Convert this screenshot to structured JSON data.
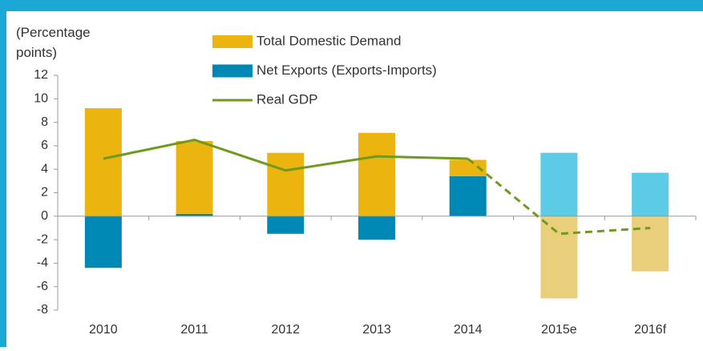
{
  "chart_data": {
    "type": "bar_line",
    "y_label": "(Percentage points)",
    "categories": [
      "2010",
      "2011",
      "2012",
      "2013",
      "2014",
      "2015e",
      "2016f"
    ],
    "series": [
      {
        "name": "Net Exports (Exports-Imports)",
        "type": "bar",
        "color": "#0088b4",
        "colors": [
          "#0088b4",
          "#0088b4",
          "#0088b4",
          "#0088b4",
          "#0088b4",
          "#5bcbe6",
          "#5bcbe6"
        ],
        "values": [
          -4.4,
          0.2,
          -1.5,
          -2.0,
          3.4,
          5.4,
          3.7
        ]
      },
      {
        "name": "Total Domestic Demand",
        "type": "bar",
        "color": "#ecb40f",
        "colors": [
          "#ecb40f",
          "#ecb40f",
          "#ecb40f",
          "#ecb40f",
          "#ecb40f",
          "#e9cf7c",
          "#e9cf7c"
        ],
        "values": [
          9.2,
          6.2,
          5.4,
          7.1,
          1.4,
          -7.0,
          -4.7
        ]
      },
      {
        "name": "Real GDP",
        "type": "line",
        "color": "#6f9a1e",
        "styles": [
          "solid",
          "solid",
          "solid",
          "solid",
          "solid",
          "dashed",
          "dashed"
        ],
        "values": [
          4.9,
          6.5,
          3.9,
          5.1,
          4.9,
          -1.5,
          -1.0
        ]
      }
    ],
    "legend_order": [
      1,
      0,
      2
    ],
    "ylim": [
      -8,
      12
    ],
    "yticks": [
      -8,
      -6,
      -4,
      -2,
      0,
      2,
      4,
      6,
      8,
      10,
      12
    ]
  }
}
